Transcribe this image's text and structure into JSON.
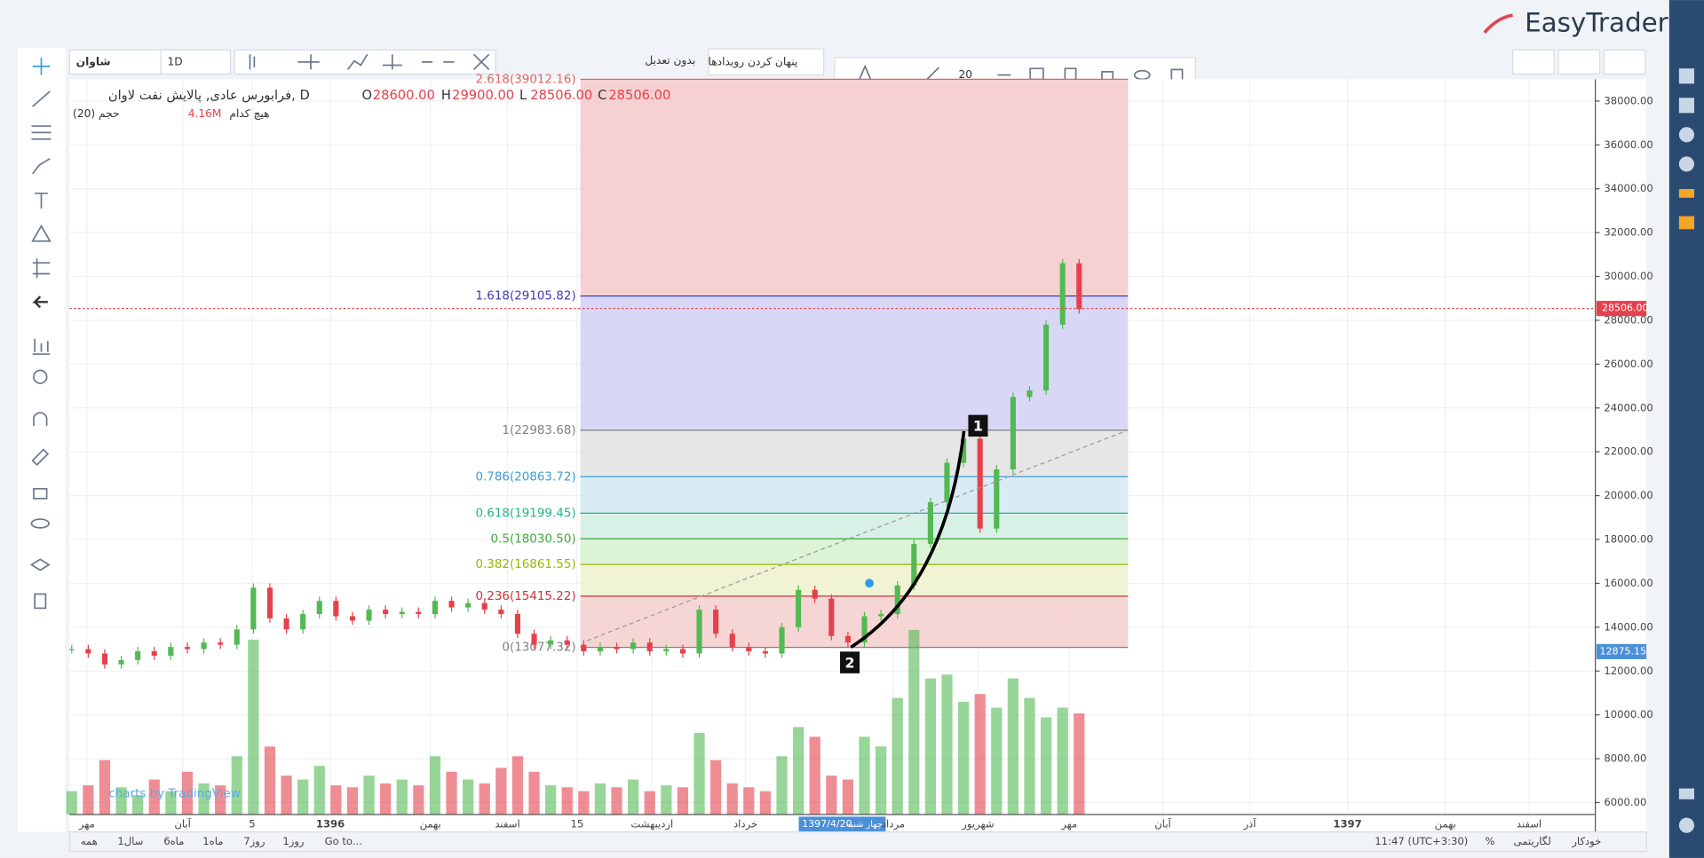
{
  "header": {
    "brand": "EasyTrader"
  },
  "toolbar": {
    "symbol": "شاوان",
    "interval": "1D",
    "adjust": "بدون تعدیل",
    "hide_events": "پنهان کردن رویدادها",
    "font_size": "20"
  },
  "legend": {
    "title": "فرابورس عادی, پالایش نفت لاوان, D",
    "open_label": "O",
    "open": "28600.00",
    "high_label": "H",
    "high": "29900.00",
    "low_label": "L",
    "low": "28506.00",
    "close_label": "C",
    "close": "28506.00",
    "volume_title": "حجم (20)",
    "volume_ma": "هیچ کدام",
    "volume_value": "4.16M"
  },
  "price_axis": {
    "ylim": [
      6000,
      38000
    ],
    "ticks": [
      {
        "value": 6000,
        "label": "6000.00"
      },
      {
        "value": 8000,
        "label": "8000.00"
      },
      {
        "value": 10000,
        "label": "10000.00"
      },
      {
        "value": 12000,
        "label": "12000.00"
      },
      {
        "value": 14000,
        "label": "14000.00"
      },
      {
        "value": 16000,
        "label": "16000.00"
      },
      {
        "value": 18000,
        "label": "18000.00"
      },
      {
        "value": 20000,
        "label": "20000.00"
      },
      {
        "value": 22000,
        "label": "22000.00"
      },
      {
        "value": 24000,
        "label": "24000.00"
      },
      {
        "value": 26000,
        "label": "26000.00"
      },
      {
        "value": 28000,
        "label": "28000.00"
      },
      {
        "value": 30000,
        "label": "30000.00"
      },
      {
        "value": 32000,
        "label": "32000.00"
      },
      {
        "value": 34000,
        "label": "34000.00"
      },
      {
        "value": 36000,
        "label": "36000.00"
      },
      {
        "value": 38000,
        "label": "38000.00"
      }
    ],
    "last_price": "28506.00",
    "cursor_price": "12875.15"
  },
  "time_axis": {
    "labels": [
      "مهر",
      "آبان",
      "5",
      "1396",
      "بهمن",
      "اسفند",
      "15",
      "اردیبهشت",
      "خرداد",
      "مرداد",
      "شهریور",
      "مهر",
      "آبان",
      "آذر",
      "1397",
      "بهمن",
      "اسفند"
    ],
    "cursor_date": "1397/4/20",
    "cursor_day": "چهار شنبه"
  },
  "fibonacci": {
    "levels": [
      {
        "price": 39012.16,
        "label": "2.618(39012.16)",
        "color": "#e06666",
        "fill": "#f4cccc"
      },
      {
        "price": 29105.82,
        "label": "1.618(29105.82)",
        "color": "#3c3cb4",
        "fill": "#d4d4f5"
      },
      {
        "price": 22983.68,
        "label": "1(22983.68)",
        "color": "#808080",
        "fill": "#e3e3e3"
      },
      {
        "price": 20863.72,
        "label": "0.786(20863.72)",
        "color": "#3d9bd6",
        "fill": "#d6e9f5"
      },
      {
        "price": 19199.45,
        "label": "0.618(19199.45)",
        "color": "#22b58a",
        "fill": "#d4f0e4"
      },
      {
        "price": 18030.5,
        "label": "0.5(18030.50)",
        "color": "#3caa3c",
        "fill": "#d8f2d2"
      },
      {
        "price": 16861.55,
        "label": "0.382(16861.55)",
        "color": "#99b800",
        "fill": "#eef2cf"
      },
      {
        "price": 15415.22,
        "label": "0.236(15415.22)",
        "color": "#cc3333",
        "fill": "#f5d0d0"
      },
      {
        "price": 13077.32,
        "label": "0(13077.32)",
        "color": "#808080",
        "fill": "#f5d0d0"
      }
    ]
  },
  "price_series": {
    "up_color": "#53b953",
    "down_color": "#e5414d",
    "closes": [
      13000,
      12800,
      12300,
      12500,
      12900,
      12700,
      13100,
      13000,
      13300,
      13200,
      13900,
      15800,
      14400,
      13900,
      14600,
      15200,
      14500,
      14300,
      14800,
      14600,
      14700,
      14600,
      15200,
      14900,
      15100,
      14800,
      14600,
      13700,
      13200,
      13400,
      13200,
      12900,
      13100,
      13000,
      13300,
      12900,
      13000,
      12800,
      14800,
      13700,
      13100,
      12900,
      12800,
      14000,
      15700,
      15300,
      13600,
      13300,
      14500,
      14600,
      15900,
      17800,
      19700,
      21500,
      22600,
      18500,
      21200,
      24500,
      24800,
      27800,
      30600,
      28506
    ],
    "volumes": [
      12,
      15,
      28,
      14,
      10,
      18,
      12,
      22,
      16,
      15,
      30,
      90,
      35,
      20,
      18,
      25,
      15,
      14,
      20,
      16,
      18,
      15,
      30,
      22,
      18,
      16,
      24,
      30,
      22,
      15,
      14,
      12,
      16,
      14,
      18,
      12,
      15,
      14,
      42,
      28,
      16,
      14,
      12,
      30,
      45,
      40,
      20,
      18,
      40,
      35,
      60,
      95,
      70,
      72,
      58,
      62,
      55,
      70,
      60,
      50,
      55,
      52
    ]
  },
  "markers": [
    "1",
    "2"
  ],
  "bottom_bar": {
    "ranges": [
      "همه",
      "1سال",
      "6ماه",
      "1ماه",
      "7روز",
      "1روز"
    ],
    "goto": "Go to...",
    "time": "11:47 (UTC+3:30)",
    "percent": "%",
    "log": "لگاریتمی",
    "auto": "خودکار"
  },
  "watermark": "charts by TradingView"
}
